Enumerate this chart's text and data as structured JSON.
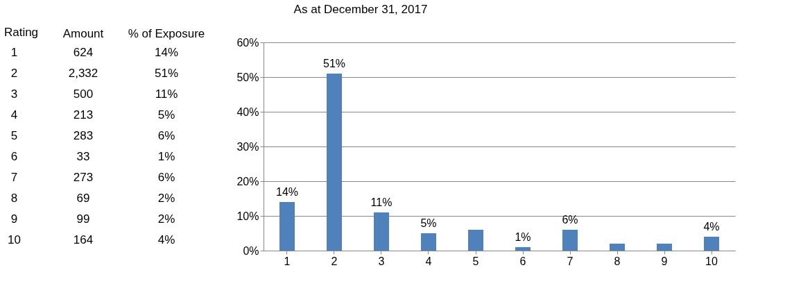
{
  "chart_data": [
    {
      "type": "heatmap",
      "ylabel": "Rating",
      "categories": [
        "Amount",
        "% of Exposure"
      ],
      "y_categories": [
        "1",
        "2",
        "3",
        "4",
        "5",
        "6",
        "7",
        "8",
        "9",
        "10"
      ],
      "cells": [
        [
          624,
          14
        ],
        [
          2332,
          51
        ],
        [
          500,
          11
        ],
        [
          213,
          5
        ],
        [
          283,
          6
        ],
        [
          33,
          1
        ],
        [
          273,
          6
        ],
        [
          69,
          2
        ],
        [
          99,
          2
        ],
        [
          164,
          4
        ]
      ],
      "cell_labels": [
        [
          "624",
          "14%"
        ],
        [
          "2,332",
          "51%"
        ],
        [
          "500",
          "11%"
        ],
        [
          "213",
          "5%"
        ],
        [
          "283",
          "6%"
        ],
        [
          "33",
          "1%"
        ],
        [
          "273",
          "6%"
        ],
        [
          "69",
          "2%"
        ],
        [
          "99",
          "2%"
        ],
        [
          "164",
          "4%"
        ]
      ]
    },
    {
      "type": "bar",
      "title": "As at December 31, 2017",
      "categories": [
        "1",
        "2",
        "3",
        "4",
        "5",
        "6",
        "7",
        "8",
        "9",
        "10"
      ],
      "values": [
        14,
        51,
        11,
        5,
        6,
        1,
        6,
        2,
        2,
        4
      ],
      "value_labels": [
        "14%",
        "51%",
        "11%",
        "5%",
        null,
        "1%",
        "6%",
        null,
        null,
        "4%"
      ],
      "color": "#4f81bd",
      "ylim": [
        0,
        60
      ],
      "yticks": [
        {
          "value": 0,
          "label": "0%"
        },
        {
          "value": 10,
          "label": "10%"
        },
        {
          "value": 20,
          "label": "20%"
        },
        {
          "value": 30,
          "label": "30%"
        },
        {
          "value": 40,
          "label": "40%"
        },
        {
          "value": 50,
          "label": "50%"
        },
        {
          "value": 60,
          "label": "60%"
        }
      ],
      "grid": "y"
    }
  ]
}
